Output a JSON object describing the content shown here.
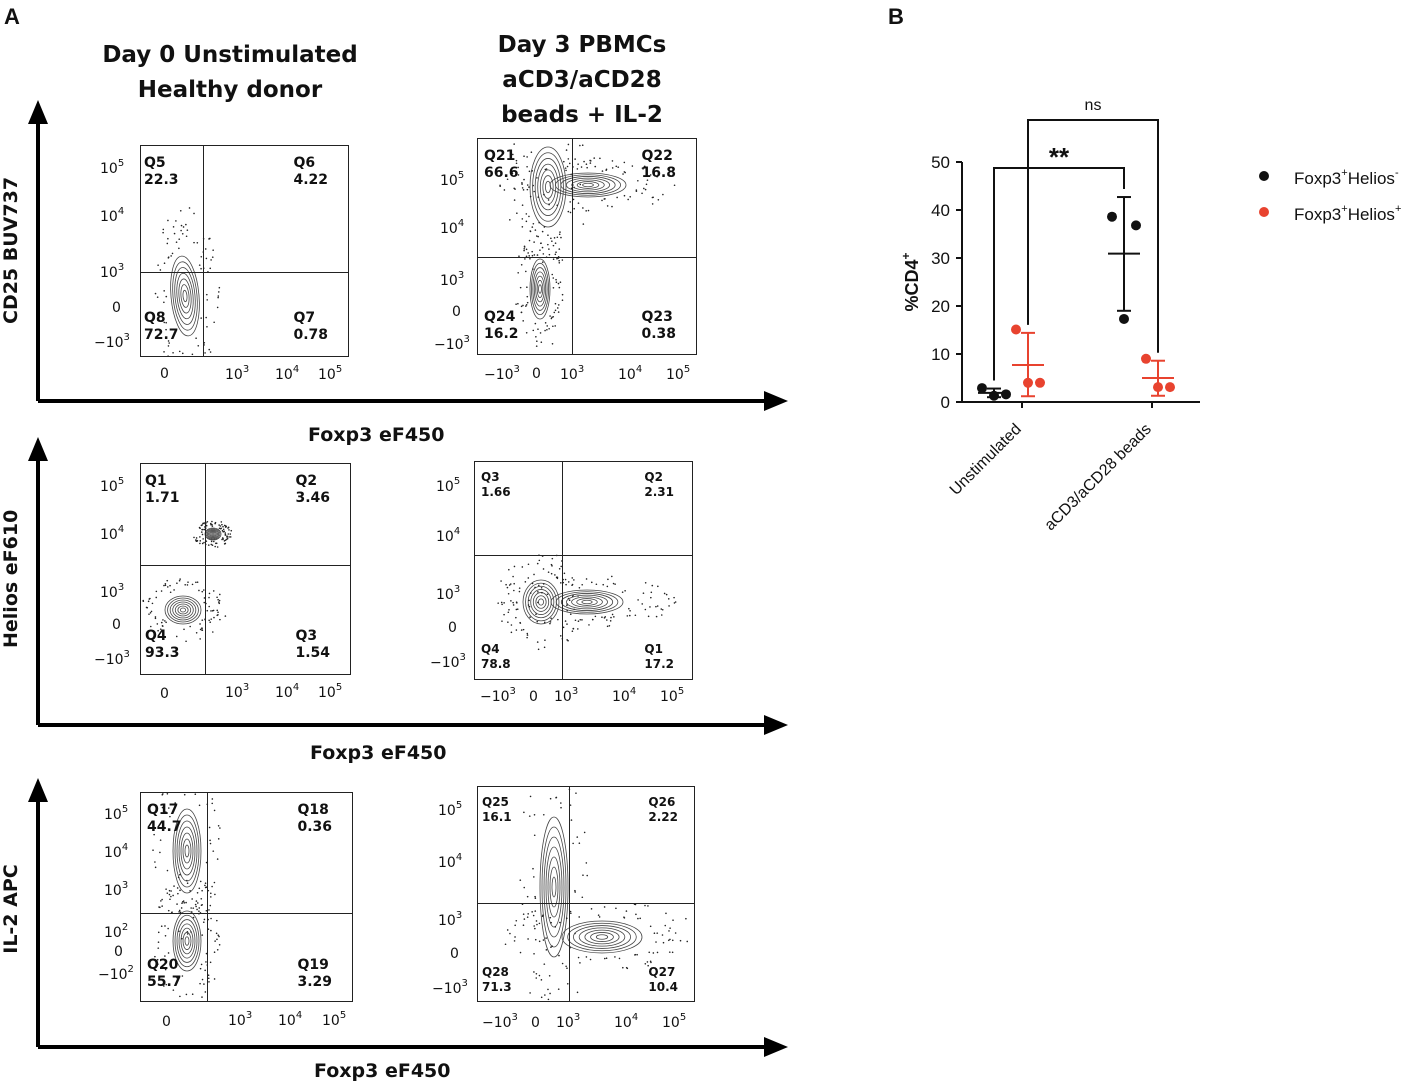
{
  "panels": {
    "a": "A",
    "b": "B"
  },
  "column_headers": {
    "left": [
      "Day 0 Unstimulated",
      "Healthy donor"
    ],
    "right": [
      "Day 3 PBMCs",
      "aCD3/aCD28",
      "beads + IL-2"
    ]
  },
  "rows": [
    {
      "y_label": "CD25 BUV737",
      "x_label": "Foxp3 eF450",
      "left": {
        "y_ticks": [
          "10^5",
          "10^4",
          "10^3",
          "0",
          "-10^3"
        ],
        "x_ticks": [
          "0",
          "10^3",
          "10^4",
          "10^5"
        ],
        "q_ul": [
          "Q5",
          "22.3"
        ],
        "q_ur": [
          "Q6",
          "4.22"
        ],
        "q_ll": [
          "Q8",
          "72.7"
        ],
        "q_lr": [
          "Q7",
          "0.78"
        ]
      },
      "right": {
        "y_ticks": [
          "10^5",
          "10^4",
          "10^3",
          "0",
          "-10^3"
        ],
        "x_ticks": [
          "-10^3",
          "0",
          "10^3",
          "10^4",
          "10^5"
        ],
        "q_ul": [
          "Q21",
          "66.6"
        ],
        "q_ur": [
          "Q22",
          "16.8"
        ],
        "q_ll": [
          "Q24",
          "16.2"
        ],
        "q_lr": [
          "Q23",
          "0.38"
        ]
      }
    },
    {
      "y_label": "Helios eF610",
      "x_label": "Foxp3 eF450",
      "left": {
        "y_ticks": [
          "10^5",
          "10^4",
          "10^3",
          "0",
          "-10^3"
        ],
        "x_ticks": [
          "0",
          "10^3",
          "10^4",
          "10^5"
        ],
        "q_ul": [
          "Q1",
          "1.71"
        ],
        "q_ur": [
          "Q2",
          "3.46"
        ],
        "q_ll": [
          "Q4",
          "93.3"
        ],
        "q_lr": [
          "Q3",
          "1.54"
        ]
      },
      "right": {
        "y_ticks": [
          "10^5",
          "10^4",
          "10^3",
          "0",
          "-10^3"
        ],
        "x_ticks": [
          "-10^3",
          "0",
          "10^3",
          "10^4",
          "10^5"
        ],
        "q_ul": [
          "Q3",
          "1.66"
        ],
        "q_ur": [
          "Q2",
          "2.31"
        ],
        "q_ll": [
          "Q4",
          "78.8"
        ],
        "q_lr": [
          "Q1",
          "17.2"
        ]
      }
    },
    {
      "y_label": "IL-2 APC",
      "x_label": "Foxp3 eF450",
      "left": {
        "y_ticks": [
          "10^5",
          "10^4",
          "10^3",
          "10^2",
          "0",
          "-10^2"
        ],
        "x_ticks": [
          "0",
          "10^3",
          "10^4",
          "10^5"
        ],
        "q_ul": [
          "Q17",
          "44.7"
        ],
        "q_ur": [
          "Q18",
          "0.36"
        ],
        "q_ll": [
          "Q20",
          "55.7"
        ],
        "q_lr": [
          "Q19",
          "3.29"
        ]
      },
      "right": {
        "y_ticks": [
          "10^5",
          "10^4",
          "10^3",
          "0",
          "-10^3"
        ],
        "x_ticks": [
          "-10^3",
          "0",
          "10^3",
          "10^4",
          "10^5"
        ],
        "q_ul": [
          "Q25",
          "16.1"
        ],
        "q_ur": [
          "Q26",
          "2.22"
        ],
        "q_ll": [
          "Q28",
          "71.3"
        ],
        "q_lr": [
          "Q27",
          "10.4"
        ]
      }
    }
  ],
  "chart_data": {
    "type": "scatter",
    "title": "",
    "ylabel": "%CD4+",
    "ylabel_main": "%CD4",
    "ylabel_sup": "+",
    "ylim": [
      0,
      50
    ],
    "y_ticks": [
      0,
      10,
      20,
      30,
      40,
      50
    ],
    "categories": [
      "Unstimulated",
      "aCD3/aCD28 beads"
    ],
    "colors": {
      "helios_neg": "#111111",
      "helios_pos": "#e8432f"
    },
    "series": [
      {
        "name": "Foxp3+Helios-",
        "legend_main": "Foxp3",
        "legend_sup1": "+",
        "legend_mid": "Helios",
        "legend_sup2": "-",
        "color": "#111111",
        "groups": [
          {
            "category": "Unstimulated",
            "points": [
              2.9,
              1.3,
              1.6
            ],
            "mean": 1.9,
            "error": [
              1.0,
              2.8
            ]
          },
          {
            "category": "aCD3/aCD28 beads",
            "points": [
              38.6,
              36.8,
              17.3
            ],
            "mean": 30.9,
            "error": [
              19.0,
              42.7
            ]
          }
        ]
      },
      {
        "name": "Foxp3+Helios+",
        "legend_main": "Foxp3",
        "legend_sup1": "+",
        "legend_mid": "Helios",
        "legend_sup2": "+",
        "color": "#e8432f",
        "groups": [
          {
            "category": "Unstimulated",
            "points": [
              15.1,
              4.0,
              4.0
            ],
            "mean": 7.7,
            "error": [
              1.2,
              14.4
            ]
          },
          {
            "category": "aCD3/aCD28 beads",
            "points": [
              9.0,
              3.1,
              3.1
            ],
            "mean": 5.0,
            "error": [
              1.3,
              8.6
            ]
          }
        ]
      }
    ],
    "annotations": [
      {
        "text": "**",
        "between": [
          "Unstimulated Foxp3+Helios-",
          "aCD3/aCD28 beads Foxp3+Helios-"
        ]
      },
      {
        "text": "ns",
        "between": [
          "Unstimulated Foxp3+Helios+",
          "aCD3/aCD28 beads Foxp3+Helios+"
        ]
      }
    ],
    "legend_position": "top-right"
  }
}
